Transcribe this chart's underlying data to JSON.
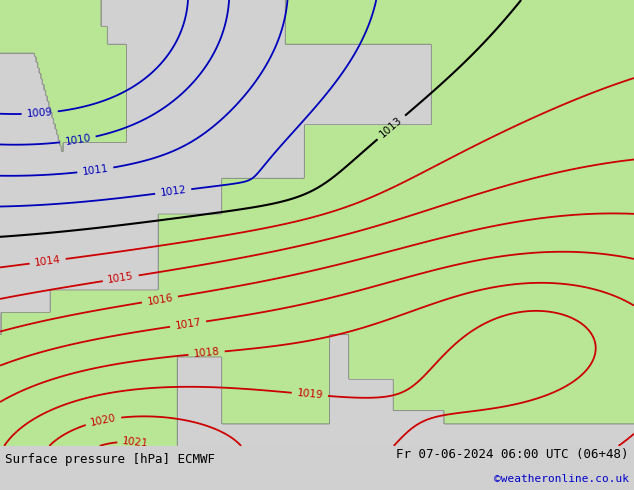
{
  "title_left": "Surface pressure [hPa] ECMWF",
  "title_right": "Fr 07-06-2024 06:00 UTC (06+48)",
  "credit": "©weatheronline.co.uk",
  "land_color_r": 0.722,
  "land_color_g": 0.902,
  "land_color_b": 0.588,
  "sea_color_r": 0.82,
  "sea_color_g": 0.82,
  "sea_color_b": 0.82,
  "isobar_color_blue": "#0000bb",
  "isobar_color_red": "#cc0000",
  "isobar_color_black": "#000000",
  "label_fontsize": 7.5,
  "footer_fontsize": 9,
  "credit_fontsize": 8,
  "footer_color": "#000000",
  "credit_color": "#0000cc",
  "blue_levels": [
    1009,
    1010,
    1011,
    1012
  ],
  "black_levels": [
    1013
  ],
  "red_levels": [
    1014,
    1015,
    1016,
    1017,
    1018,
    1019,
    1020,
    1021
  ],
  "footer_bg": "#d0d0d0"
}
